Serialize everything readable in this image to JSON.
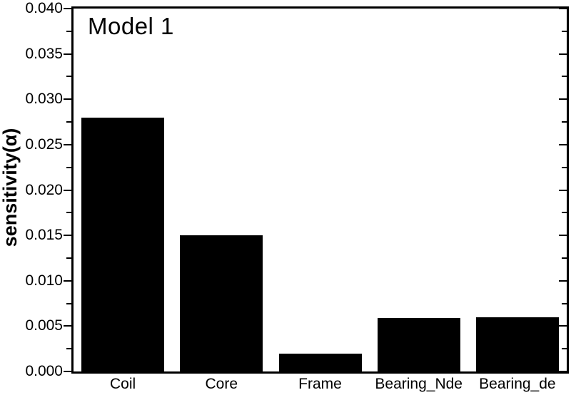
{
  "chart_data": {
    "type": "bar",
    "title": "Model 1",
    "categories": [
      "Coil",
      "Core",
      "Frame",
      "Bearing_Nde",
      "Bearing_de"
    ],
    "values": [
      0.028,
      0.015,
      0.002,
      0.0059,
      0.006
    ],
    "xlabel": "",
    "ylabel": "sensitivity(α)",
    "ylim": [
      0,
      0.04
    ],
    "ytick_major_step": 0.005,
    "ytick_minor_step": 0.0025,
    "ytick_labels": [
      "0.000",
      "0.005",
      "0.010",
      "0.015",
      "0.020",
      "0.025",
      "0.030",
      "0.035",
      "0.040"
    ],
    "bar_color": "#000000",
    "axis_color": "#000000",
    "background_color": "#ffffff",
    "grid": false,
    "legend_position": "none"
  }
}
